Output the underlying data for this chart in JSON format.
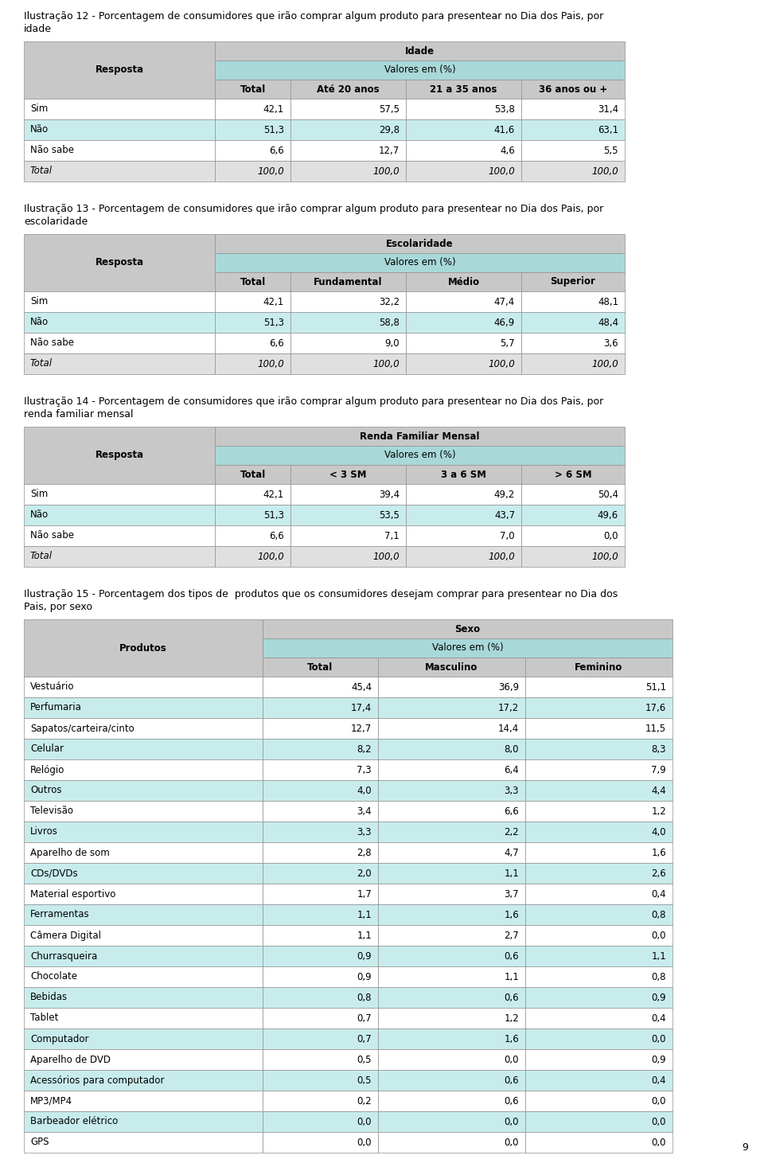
{
  "page_num": "9",
  "caption12": "Ilustração 12 - Porcentagem de consumidores que irão comprar algum produto para presentear no Dia dos Pais, por idade",
  "table12": {
    "header1": "Idade",
    "header2": "Valores em (%)",
    "col_headers": [
      "Total",
      "Até 20 anos",
      "21 a 35 anos",
      "36 anos ou +"
    ],
    "row_label_header": "Resposta",
    "rows": [
      [
        "Sim",
        "42,1",
        "57,5",
        "53,8",
        "31,4"
      ],
      [
        "Não",
        "51,3",
        "29,8",
        "41,6",
        "63,1"
      ],
      [
        "Não sabe",
        "6,6",
        "12,7",
        "4,6",
        "5,5"
      ],
      [
        "Total",
        "100,0",
        "100,0",
        "100,0",
        "100,0"
      ]
    ]
  },
  "caption13": "Ilustração 13 - Porcentagem de consumidores que irão comprar algum produto para presentear no Dia dos Pais, por escolaridade",
  "table13": {
    "header1": "Escolaridade",
    "header2": "Valores em (%)",
    "col_headers": [
      "Total",
      "Fundamental",
      "Médio",
      "Superior"
    ],
    "row_label_header": "Resposta",
    "rows": [
      [
        "Sim",
        "42,1",
        "32,2",
        "47,4",
        "48,1"
      ],
      [
        "Não",
        "51,3",
        "58,8",
        "46,9",
        "48,4"
      ],
      [
        "Não sabe",
        "6,6",
        "9,0",
        "5,7",
        "3,6"
      ],
      [
        "Total",
        "100,0",
        "100,0",
        "100,0",
        "100,0"
      ]
    ]
  },
  "caption14": "Ilustração 14 - Porcentagem de consumidores que irão comprar algum produto para presentear no Dia dos Pais, por renda familiar mensal",
  "table14": {
    "header1": "Renda Familiar Mensal",
    "header2": "Valores em (%)",
    "col_headers": [
      "Total",
      "< 3 SM",
      "3 a 6 SM",
      "> 6 SM"
    ],
    "row_label_header": "Resposta",
    "rows": [
      [
        "Sim",
        "42,1",
        "39,4",
        "49,2",
        "50,4"
      ],
      [
        "Não",
        "51,3",
        "53,5",
        "43,7",
        "49,6"
      ],
      [
        "Não sabe",
        "6,6",
        "7,1",
        "7,0",
        "0,0"
      ],
      [
        "Total",
        "100,0",
        "100,0",
        "100,0",
        "100,0"
      ]
    ]
  },
  "caption15": "Ilustração 15 - Porcentagem dos tipos de  produtos que os consumidores desejam comprar para presentear no Dia dos Pais, por sexo",
  "table15": {
    "header1": "Sexo",
    "header2": "Valores em (%)",
    "col_headers": [
      "Total",
      "Masculino",
      "Feminino"
    ],
    "row_label_header": "Produtos",
    "rows": [
      [
        "Vestuário",
        "45,4",
        "36,9",
        "51,1"
      ],
      [
        "Perfumaria",
        "17,4",
        "17,2",
        "17,6"
      ],
      [
        "Sapatos/carteira/cinto",
        "12,7",
        "14,4",
        "11,5"
      ],
      [
        "Celular",
        "8,2",
        "8,0",
        "8,3"
      ],
      [
        "Relógio",
        "7,3",
        "6,4",
        "7,9"
      ],
      [
        "Outros",
        "4,0",
        "3,3",
        "4,4"
      ],
      [
        "Televisão",
        "3,4",
        "6,6",
        "1,2"
      ],
      [
        "Livros",
        "3,3",
        "2,2",
        "4,0"
      ],
      [
        "Aparelho de som",
        "2,8",
        "4,7",
        "1,6"
      ],
      [
        "CDs/DVDs",
        "2,0",
        "1,1",
        "2,6"
      ],
      [
        "Material esportivo",
        "1,7",
        "3,7",
        "0,4"
      ],
      [
        "Ferramentas",
        "1,1",
        "1,6",
        "0,8"
      ],
      [
        "Câmera Digital",
        "1,1",
        "2,7",
        "0,0"
      ],
      [
        "Churrasqueira",
        "0,9",
        "0,6",
        "1,1"
      ],
      [
        "Chocolate",
        "0,9",
        "1,1",
        "0,8"
      ],
      [
        "Bebidas",
        "0,8",
        "0,6",
        "0,9"
      ],
      [
        "Tablet",
        "0,7",
        "1,2",
        "0,4"
      ],
      [
        "Computador",
        "0,7",
        "1,6",
        "0,0"
      ],
      [
        "Aparelho de DVD",
        "0,5",
        "0,0",
        "0,9"
      ],
      [
        "Acessórios para computador",
        "0,5",
        "0,6",
        "0,4"
      ],
      [
        "MP3/MP4",
        "0,2",
        "0,6",
        "0,0"
      ],
      [
        "Barbeador elétrico",
        "0,0",
        "0,0",
        "0,0"
      ],
      [
        "GPS",
        "0,0",
        "0,0",
        "0,0"
      ]
    ]
  },
  "colors": {
    "header_gray": "#C8C8C8",
    "header_cyan": "#A8D8D8",
    "row_white": "#FFFFFF",
    "row_cyan": "#C8ECEC",
    "row_light": "#E0E0E0",
    "border": "#909090"
  }
}
